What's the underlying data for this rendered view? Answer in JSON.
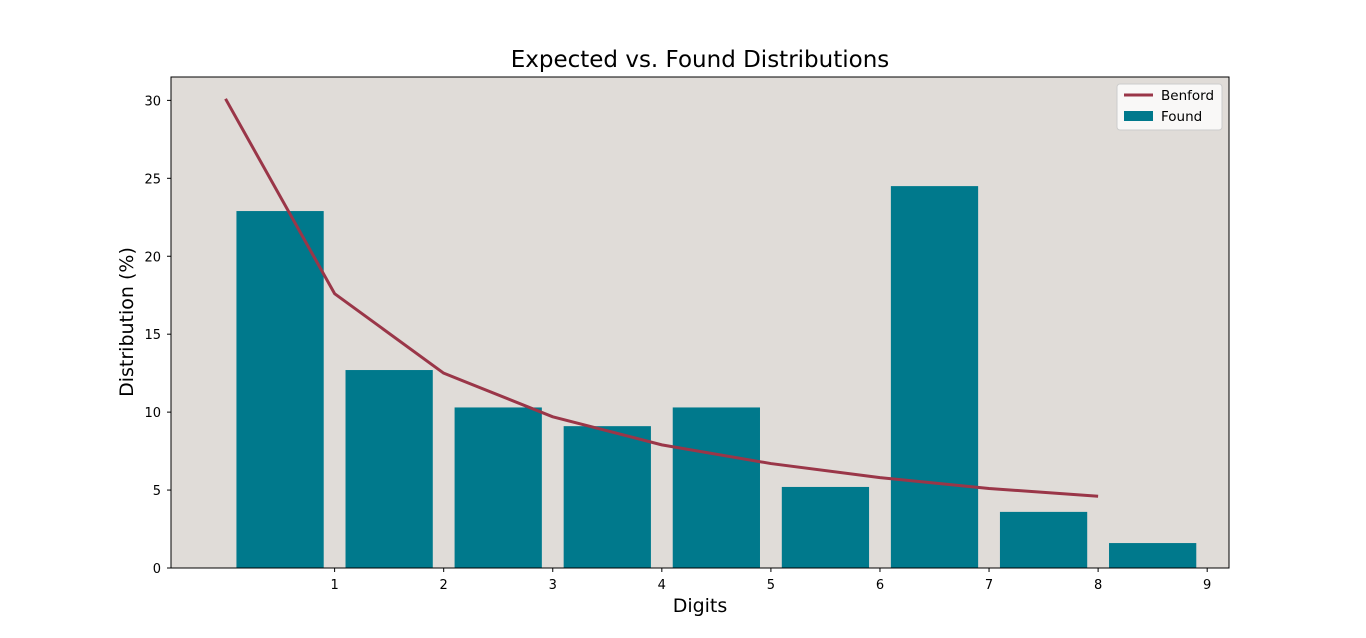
{
  "chart_data": {
    "type": "bar",
    "title": "Expected vs. Found Distributions",
    "xlabel": "Digits",
    "ylabel": "Distribution (%)",
    "x_ticks": [
      "1",
      "2",
      "3",
      "4",
      "5",
      "6",
      "7",
      "8",
      "9"
    ],
    "y_ticks": [
      "0",
      "5",
      "10",
      "15",
      "20",
      "25",
      "30"
    ],
    "ylim": [
      0,
      31.5
    ],
    "grid": false,
    "legend_position": "top-right",
    "background_color": "#e0dcd8",
    "bar_color": "#00798c",
    "line_color": "#9a3648",
    "categories": [
      1,
      2,
      3,
      4,
      5,
      6,
      7,
      8,
      9
    ],
    "series": [
      {
        "name": "Found",
        "type": "bar",
        "values": [
          22.9,
          12.7,
          10.3,
          9.1,
          10.3,
          5.2,
          24.5,
          3.6,
          1.6
        ]
      },
      {
        "name": "Benford",
        "type": "line",
        "values": [
          30.1,
          17.6,
          12.5,
          9.7,
          7.9,
          6.7,
          5.8,
          5.1,
          4.6
        ]
      }
    ]
  }
}
